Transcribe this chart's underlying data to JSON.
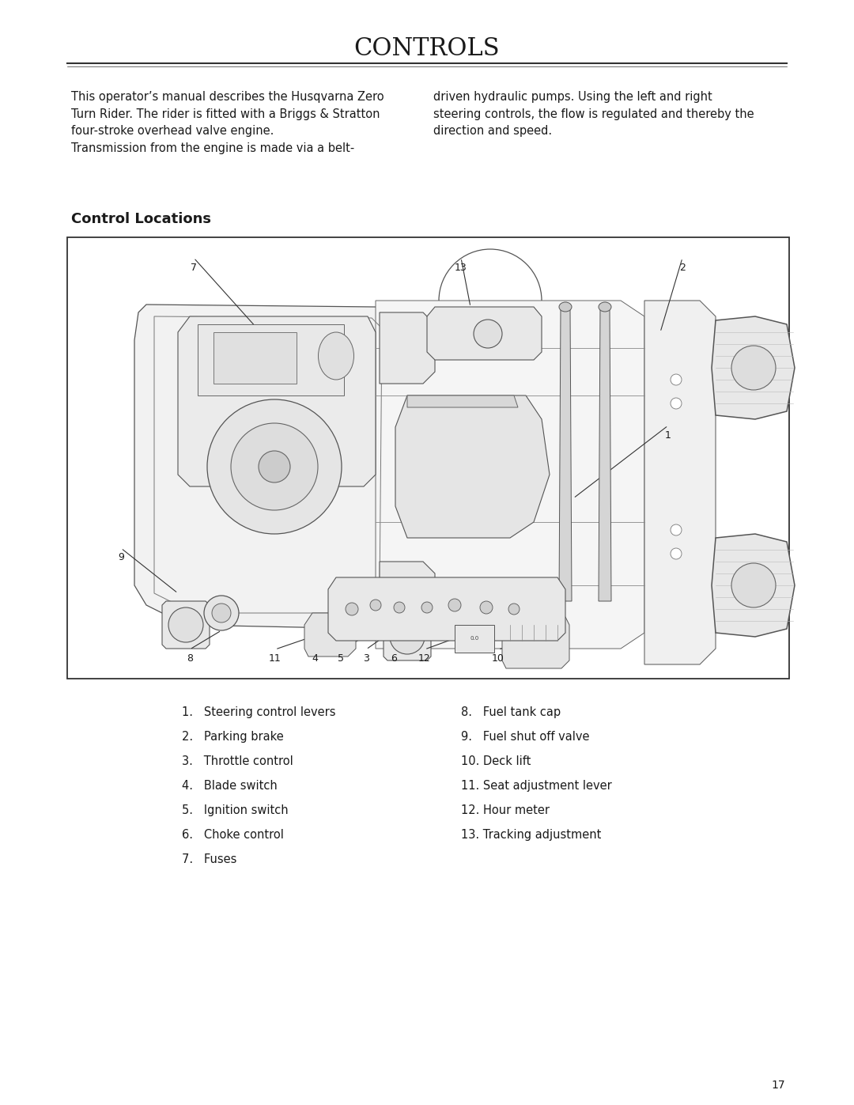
{
  "title": "CONTROLS",
  "bg_color": "#ffffff",
  "title_fontsize": 22,
  "page_number": "17",
  "intro_text_left": "This operator’s manual describes the Husqvarna Zero\nTurn Rider. The rider is fitted with a Briggs & Stratton\nfour-stroke overhead valve engine.\nTransmission from the engine is made via a belt-",
  "intro_text_right": "driven hydraulic pumps. Using the left and right\nsteering controls, the flow is regulated and thereby the\ndirection and speed.",
  "section_title": "Control Locations",
  "legend_col1": [
    "1.   Steering control levers",
    "2.   Parking brake",
    "3.   Throttle control",
    "4.   Blade switch",
    "5.   Ignition switch",
    "6.   Choke control",
    "7.   Fuses"
  ],
  "legend_col2": [
    "8.   Fuel tank cap",
    "9.   Fuel shut off valve",
    "10. Deck lift",
    "11. Seat adjustment lever",
    "12. Hour meter",
    "13. Tracking adjustment"
  ],
  "text_color": "#1a1a1a",
  "line_color": "#333333",
  "font_size_body": 10.5,
  "font_size_legend": 10.5,
  "font_size_section": 13
}
